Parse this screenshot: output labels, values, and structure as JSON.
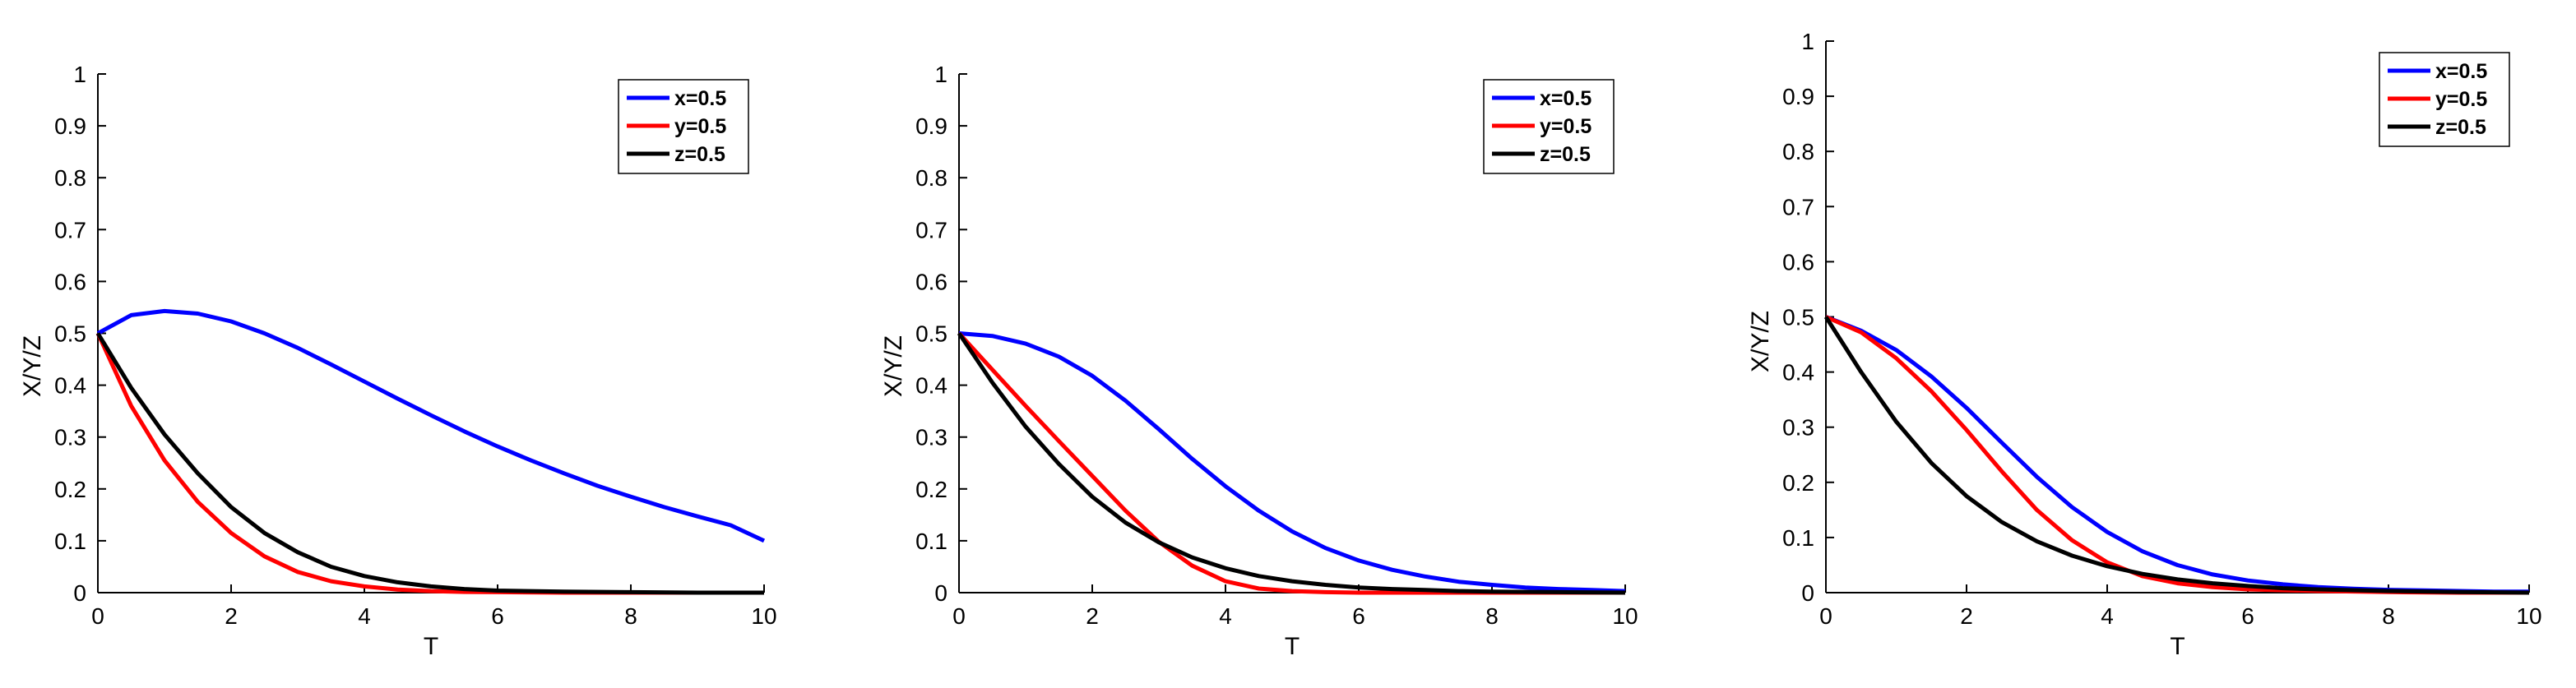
{
  "chart_data": [
    {
      "type": "line",
      "xlabel": "T",
      "ylabel": "X/Y/Z",
      "xlim": [
        0,
        10
      ],
      "ylim": [
        0,
        1
      ],
      "xticks": [
        "0",
        "2",
        "4",
        "6",
        "8",
        "10"
      ],
      "yticks": [
        "0",
        "0.1",
        "0.2",
        "0.3",
        "0.4",
        "0.5",
        "0.6",
        "0.7",
        "0.8",
        "0.9",
        "1"
      ],
      "legend_position": "top-right",
      "grid": false,
      "series": [
        {
          "name": "x=0.5",
          "color": "#0000ff",
          "x": [
            0,
            0.5,
            1,
            1.5,
            2,
            2.5,
            3,
            3.5,
            4,
            4.5,
            5,
            5.5,
            6,
            6.5,
            7,
            7.5,
            8,
            8.5,
            9,
            9.5,
            10
          ],
          "y": [
            0.5,
            0.535,
            0.543,
            0.538,
            0.523,
            0.5,
            0.472,
            0.44,
            0.407,
            0.374,
            0.342,
            0.311,
            0.282,
            0.255,
            0.23,
            0.206,
            0.185,
            0.165,
            0.147,
            0.13,
            0.1
          ]
        },
        {
          "name": "y=0.5",
          "color": "#ff0000",
          "x": [
            0,
            0.5,
            1,
            1.5,
            2,
            2.5,
            3,
            3.5,
            4,
            4.5,
            5,
            5.5,
            6,
            7,
            8,
            9,
            10
          ],
          "y": [
            0.5,
            0.36,
            0.255,
            0.175,
            0.115,
            0.07,
            0.04,
            0.022,
            0.012,
            0.006,
            0.003,
            0.0015,
            0.001,
            0,
            0,
            0,
            0
          ]
        },
        {
          "name": "z=0.5",
          "color": "#000000",
          "x": [
            0,
            0.5,
            1,
            1.5,
            2,
            2.5,
            3,
            3.5,
            4,
            4.5,
            5,
            5.5,
            6,
            7,
            8,
            9,
            10
          ],
          "y": [
            0.5,
            0.395,
            0.305,
            0.23,
            0.165,
            0.115,
            0.078,
            0.05,
            0.032,
            0.02,
            0.012,
            0.007,
            0.004,
            0.002,
            0.001,
            0,
            0
          ]
        }
      ]
    },
    {
      "type": "line",
      "xlabel": "T",
      "ylabel": "X/Y/Z",
      "xlim": [
        0,
        10
      ],
      "ylim": [
        0,
        1
      ],
      "xticks": [
        "0",
        "2",
        "4",
        "6",
        "8",
        "10"
      ],
      "yticks": [
        "0",
        "0.1",
        "0.2",
        "0.3",
        "0.4",
        "0.5",
        "0.6",
        "0.7",
        "0.8",
        "0.9",
        "1"
      ],
      "legend_position": "top-right",
      "grid": false,
      "series": [
        {
          "name": "x=0.5",
          "color": "#0000ff",
          "x": [
            0,
            0.5,
            1,
            1.5,
            2,
            2.5,
            3,
            3.5,
            4,
            4.5,
            5,
            5.5,
            6,
            6.5,
            7,
            7.5,
            8,
            8.5,
            9,
            9.5,
            10
          ],
          "y": [
            0.5,
            0.495,
            0.48,
            0.455,
            0.418,
            0.37,
            0.315,
            0.258,
            0.205,
            0.158,
            0.118,
            0.086,
            0.062,
            0.044,
            0.031,
            0.021,
            0.015,
            0.01,
            0.007,
            0.005,
            0.003
          ]
        },
        {
          "name": "y=0.5",
          "color": "#ff0000",
          "x": [
            0,
            0.5,
            1,
            1.5,
            2,
            2.5,
            3,
            3.5,
            4,
            4.5,
            5,
            5.5,
            6,
            7,
            8,
            9,
            10
          ],
          "y": [
            0.5,
            0.43,
            0.36,
            0.292,
            0.225,
            0.158,
            0.098,
            0.052,
            0.022,
            0.008,
            0.003,
            0.001,
            0,
            0,
            0,
            0,
            0
          ]
        },
        {
          "name": "z=0.5",
          "color": "#000000",
          "x": [
            0,
            0.5,
            1,
            1.5,
            2,
            2.5,
            3,
            3.5,
            4,
            4.5,
            5,
            5.5,
            6,
            6.5,
            7,
            7.5,
            8,
            9,
            10
          ],
          "y": [
            0.5,
            0.405,
            0.32,
            0.248,
            0.185,
            0.135,
            0.097,
            0.068,
            0.047,
            0.032,
            0.022,
            0.015,
            0.01,
            0.007,
            0.005,
            0.003,
            0.002,
            0.001,
            0
          ]
        }
      ]
    },
    {
      "type": "line",
      "xlabel": "T",
      "ylabel": "X/Y/Z",
      "xlim": [
        0,
        10
      ],
      "ylim": [
        0,
        1
      ],
      "xticks": [
        "0",
        "2",
        "4",
        "6",
        "8",
        "10"
      ],
      "yticks": [
        "0",
        "0.1",
        "0.2",
        "0.3",
        "0.4",
        "0.5",
        "0.6",
        "0.7",
        "0.8",
        "0.9",
        "1"
      ],
      "legend_position": "top-right",
      "grid": false,
      "series": [
        {
          "name": "x=0.5",
          "color": "#0000ff",
          "x": [
            0,
            0.5,
            1,
            1.5,
            2,
            2.5,
            3,
            3.5,
            4,
            4.5,
            5,
            5.5,
            6,
            6.5,
            7,
            7.5,
            8,
            8.5,
            9,
            9.5,
            10
          ],
          "y": [
            0.5,
            0.475,
            0.44,
            0.392,
            0.335,
            0.272,
            0.21,
            0.155,
            0.11,
            0.075,
            0.05,
            0.033,
            0.022,
            0.015,
            0.01,
            0.007,
            0.005,
            0.004,
            0.003,
            0.002,
            0.002
          ]
        },
        {
          "name": "y=0.5",
          "color": "#ff0000",
          "x": [
            0,
            0.5,
            1,
            1.5,
            2,
            2.5,
            3,
            3.5,
            4,
            4.5,
            5,
            5.5,
            6,
            7,
            8,
            9,
            10
          ],
          "y": [
            0.5,
            0.472,
            0.425,
            0.365,
            0.295,
            0.22,
            0.15,
            0.095,
            0.055,
            0.03,
            0.017,
            0.01,
            0.006,
            0.003,
            0.001,
            0,
            0
          ]
        },
        {
          "name": "z=0.5",
          "color": "#000000",
          "x": [
            0,
            0.5,
            1,
            1.5,
            2,
            2.5,
            3,
            3.5,
            4,
            4.5,
            5,
            5.5,
            6,
            6.5,
            7,
            8,
            9,
            10
          ],
          "y": [
            0.5,
            0.4,
            0.31,
            0.235,
            0.175,
            0.128,
            0.093,
            0.067,
            0.048,
            0.034,
            0.024,
            0.017,
            0.012,
            0.008,
            0.006,
            0.003,
            0.001,
            0
          ]
        }
      ]
    }
  ]
}
